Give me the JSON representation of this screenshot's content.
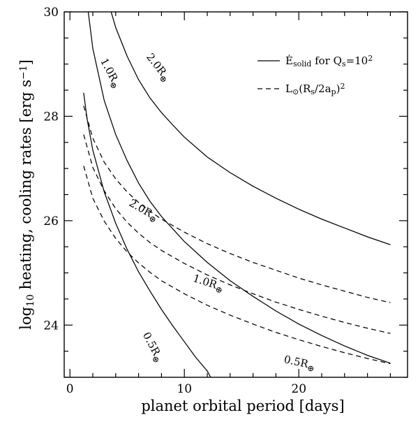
{
  "chart_data": {
    "type": "line",
    "xlabel": "planet orbital period [days]",
    "ylabel_parts": {
      "base": "log",
      "sub": "10",
      "rest": " heating, cooling rates [erg s",
      "sup": "−1",
      "end": "]"
    },
    "xlim": [
      -0.5,
      29.5
    ],
    "ylim": [
      23.0,
      30.0
    ],
    "x_ticks": [
      0,
      10,
      20
    ],
    "y_ticks": [
      24,
      26,
      28,
      30
    ],
    "legend": {
      "position": "top-right",
      "solid": {
        "main": "Ė",
        "sub": "solid",
        "rest": " for  Q",
        "sub2": "s",
        "end": "=10",
        "sup": "2"
      },
      "dashed": {
        "main": "L",
        "sub": "⊙",
        "rest": "(R",
        "sub2": "s",
        "mid": "/2a",
        "sub3": "p",
        "end": ")",
        "sup": "2"
      }
    },
    "series": [
      {
        "style": "solid",
        "label": "2.0R",
        "label_sub": "⊕",
        "label_at": [
          7.5,
          28.9
        ],
        "label_angle": 52,
        "points": [
          [
            3.6,
            30.0
          ],
          [
            4,
            29.7
          ],
          [
            5,
            29.15
          ],
          [
            6,
            28.7
          ],
          [
            7,
            28.35
          ],
          [
            8,
            28.07
          ],
          [
            9,
            27.83
          ],
          [
            10,
            27.6
          ],
          [
            12,
            27.22
          ],
          [
            14,
            26.92
          ],
          [
            16,
            26.66
          ],
          [
            18,
            26.43
          ],
          [
            20,
            26.22
          ],
          [
            22,
            26.03
          ],
          [
            24,
            25.86
          ],
          [
            26,
            25.69
          ],
          [
            28,
            25.54
          ]
        ]
      },
      {
        "style": "solid",
        "label": "1.0R",
        "label_sub": "⊕",
        "label_at": [
          3.3,
          28.8
        ],
        "label_angle": 62,
        "points": [
          [
            1.6,
            30.0
          ],
          [
            2,
            29.3
          ],
          [
            3,
            28.3
          ],
          [
            4,
            27.65
          ],
          [
            5,
            27.15
          ],
          [
            6,
            26.72
          ],
          [
            7,
            26.37
          ],
          [
            8,
            26.08
          ],
          [
            10,
            25.6
          ],
          [
            12,
            25.2
          ],
          [
            14,
            24.85
          ],
          [
            16,
            24.55
          ],
          [
            18,
            24.27
          ],
          [
            20,
            24.02
          ],
          [
            22,
            23.8
          ],
          [
            24,
            23.6
          ],
          [
            26,
            23.42
          ],
          [
            28,
            23.27
          ]
        ]
      },
      {
        "style": "solid",
        "label": "0.5R",
        "label_sub": "⊕",
        "label_at": [
          7.0,
          23.55
        ],
        "label_angle": 62,
        "points": [
          [
            1.2,
            28.45
          ],
          [
            1.5,
            27.95
          ],
          [
            2,
            27.35
          ],
          [
            3,
            26.55
          ],
          [
            4,
            25.95
          ],
          [
            5,
            25.45
          ],
          [
            6,
            25.02
          ],
          [
            7,
            24.65
          ],
          [
            8,
            24.3
          ],
          [
            9,
            23.98
          ],
          [
            10,
            23.68
          ],
          [
            11,
            23.38
          ],
          [
            12,
            23.12
          ],
          [
            12.3,
            23.0
          ]
        ]
      },
      {
        "style": "dashed",
        "label": "2.0R",
        "label_sub": "⊕",
        "label_at": [
          6.3,
          26.15
        ],
        "label_angle": 30,
        "points": [
          [
            1.2,
            28.2
          ],
          [
            2,
            27.58
          ],
          [
            3,
            27.12
          ],
          [
            4,
            26.8
          ],
          [
            5,
            26.55
          ],
          [
            6,
            26.35
          ],
          [
            7,
            26.18
          ],
          [
            8,
            26.03
          ],
          [
            10,
            25.78
          ],
          [
            12,
            25.56
          ],
          [
            14,
            25.37
          ],
          [
            16,
            25.2
          ],
          [
            18,
            25.05
          ],
          [
            20,
            24.9
          ],
          [
            22,
            24.77
          ],
          [
            24,
            24.65
          ],
          [
            26,
            24.53
          ],
          [
            28,
            24.43
          ]
        ]
      },
      {
        "style": "dashed",
        "label": "1.0R",
        "label_sub": "⊕",
        "label_at": [
          12.0,
          24.75
        ],
        "label_angle": 18,
        "points": [
          [
            1.2,
            27.65
          ],
          [
            2,
            27.02
          ],
          [
            3,
            26.57
          ],
          [
            4,
            26.23
          ],
          [
            5,
            25.97
          ],
          [
            6,
            25.76
          ],
          [
            7,
            25.58
          ],
          [
            8,
            25.43
          ],
          [
            10,
            25.18
          ],
          [
            12,
            24.96
          ],
          [
            14,
            24.77
          ],
          [
            16,
            24.6
          ],
          [
            18,
            24.44
          ],
          [
            20,
            24.3
          ],
          [
            22,
            24.17
          ],
          [
            24,
            24.05
          ],
          [
            26,
            23.94
          ],
          [
            28,
            23.84
          ]
        ]
      },
      {
        "style": "dashed",
        "label": "0.5R",
        "label_sub": "⊕",
        "label_at": [
          20.0,
          23.22
        ],
        "label_angle": 12,
        "points": [
          [
            1.2,
            27.05
          ],
          [
            2,
            26.43
          ],
          [
            3,
            25.99
          ],
          [
            4,
            25.66
          ],
          [
            5,
            25.4
          ],
          [
            6,
            25.19
          ],
          [
            7,
            25.01
          ],
          [
            8,
            24.85
          ],
          [
            10,
            24.6
          ],
          [
            12,
            24.38
          ],
          [
            14,
            24.19
          ],
          [
            16,
            24.02
          ],
          [
            18,
            23.86
          ],
          [
            20,
            23.72
          ],
          [
            22,
            23.59
          ],
          [
            24,
            23.47
          ],
          [
            26,
            23.36
          ],
          [
            28,
            23.26
          ]
        ]
      }
    ]
  }
}
